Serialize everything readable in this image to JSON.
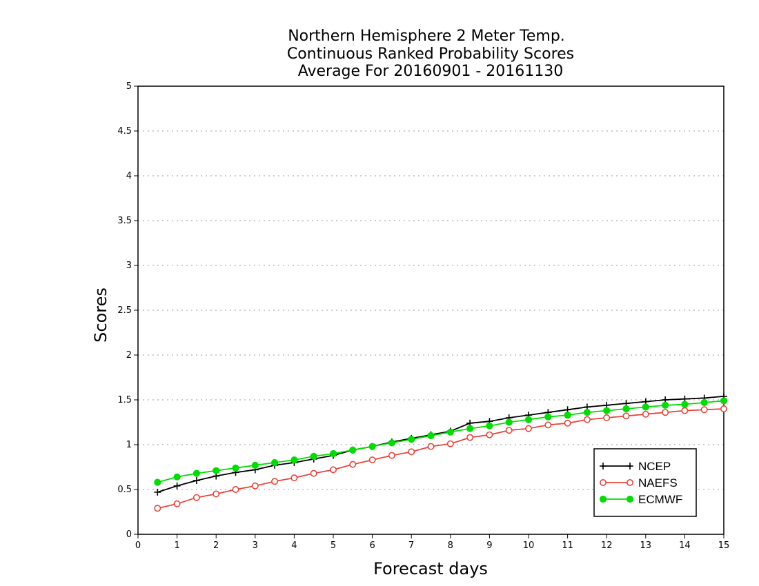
{
  "chart_data": {
    "type": "line",
    "title": [
      "Northern Hemisphere 2 Meter Temp.",
      "Continuous Ranked Probability Scores",
      "Average For 20160901 - 20161130"
    ],
    "xlabel": "Forecast days",
    "ylabel": "Scores",
    "xlim": [
      0,
      15
    ],
    "ylim": [
      0,
      5
    ],
    "x_ticks": [
      "0",
      "1",
      "2",
      "3",
      "4",
      "5",
      "6",
      "7",
      "8",
      "9",
      "10",
      "11",
      "12",
      "13",
      "14",
      "15"
    ],
    "y_ticks": [
      "0",
      "0.5",
      "1",
      "1.5",
      "2",
      "2.5",
      "3",
      "3.5",
      "4",
      "4.5",
      "5"
    ],
    "grid": "horizontal dotted",
    "legend_position": "bottom-right",
    "x": [
      0.5,
      1,
      1.5,
      2,
      2.5,
      3,
      3.5,
      4,
      4.5,
      5,
      5.5,
      6,
      6.5,
      7,
      7.5,
      8,
      8.5,
      9,
      9.5,
      10,
      10.5,
      11,
      11.5,
      12,
      12.5,
      13,
      13.5,
      14,
      14.5,
      15
    ],
    "series": [
      {
        "name": "NCEP",
        "color": "#000000",
        "marker": "plus",
        "values": [
          0.47,
          0.54,
          0.6,
          0.65,
          0.69,
          0.72,
          0.77,
          0.8,
          0.84,
          0.88,
          0.94,
          0.98,
          1.03,
          1.07,
          1.11,
          1.15,
          1.24,
          1.26,
          1.3,
          1.33,
          1.36,
          1.39,
          1.42,
          1.44,
          1.46,
          1.48,
          1.5,
          1.51,
          1.52,
          1.54
        ]
      },
      {
        "name": "NAEFS",
        "color": "#e8443a",
        "marker": "open-circle",
        "values": [
          0.29,
          0.34,
          0.41,
          0.45,
          0.5,
          0.54,
          0.59,
          0.63,
          0.68,
          0.72,
          0.78,
          0.83,
          0.88,
          0.92,
          0.98,
          1.01,
          1.08,
          1.11,
          1.16,
          1.18,
          1.22,
          1.24,
          1.28,
          1.3,
          1.32,
          1.34,
          1.36,
          1.38,
          1.39,
          1.4
        ]
      },
      {
        "name": "ECMWF",
        "color": "#00dd00",
        "marker": "filled-circle",
        "values": [
          0.58,
          0.64,
          0.68,
          0.71,
          0.74,
          0.77,
          0.8,
          0.83,
          0.87,
          0.9,
          0.94,
          0.98,
          1.02,
          1.06,
          1.1,
          1.14,
          1.18,
          1.21,
          1.25,
          1.28,
          1.31,
          1.33,
          1.36,
          1.38,
          1.4,
          1.42,
          1.44,
          1.45,
          1.47,
          1.49
        ]
      }
    ]
  }
}
